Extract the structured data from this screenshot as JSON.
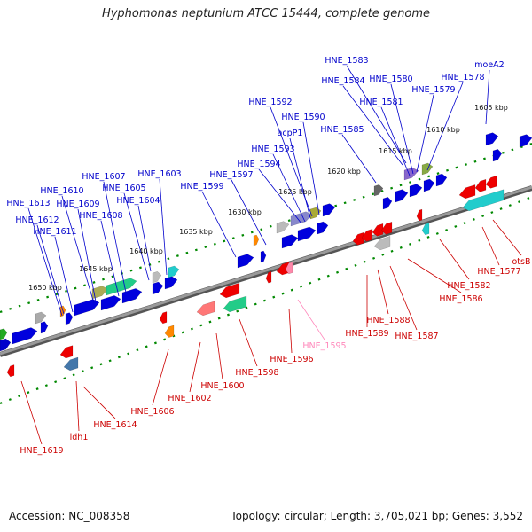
{
  "title": "Hyphomonas neptunium ATCC 15444, complete genome",
  "footer": {
    "accession": "Accession: NC_008358",
    "summary": "Topology: circular; Length: 3,705,021 bp; Genes: 3,552"
  },
  "colors": {
    "forward_label": "#0000cc",
    "reverse_label": "#cc0000",
    "rna_label": "#ff88bb",
    "forward_gene": "#0000dd",
    "reverse_gene": "#ee0000",
    "backbone": "#808080",
    "tick": "#008800"
  },
  "ticks": [
    "1605 kbp",
    "1610 kbp",
    "1615 kbp",
    "1620 kbp",
    "1625 kbp",
    "1630 kbp",
    "1635 kbp",
    "1640 kbp",
    "1645 kbp",
    "1650 kbp"
  ],
  "forward_labels": [
    "moeA2",
    "HNE_1578",
    "HNE_1579",
    "HNE_1580",
    "HNE_1581",
    "HNE_1583",
    "HNE_1584",
    "HNE_1585",
    "HNE_1590",
    "HNE_1592",
    "acpP1",
    "HNE_1593",
    "HNE_1594",
    "HNE_1597",
    "HNE_1599",
    "HNE_1603",
    "HNE_1604",
    "HNE_1605",
    "HNE_1607",
    "HNE_1608",
    "HNE_1609",
    "HNE_1610",
    "HNE_1611",
    "HNE_1612",
    "HNE_1613"
  ],
  "reverse_labels": [
    "otsB",
    "HNE_1577",
    "HNE_1582",
    "HNE_1586",
    "HNE_1587",
    "HNE_1588",
    "HNE_1589",
    "HNE_1595",
    "HNE_1596",
    "HNE_1598",
    "HNE_1600",
    "HNE_1602",
    "HNE_1606",
    "HNE_1614",
    "ldh1",
    "HNE_1619"
  ]
}
